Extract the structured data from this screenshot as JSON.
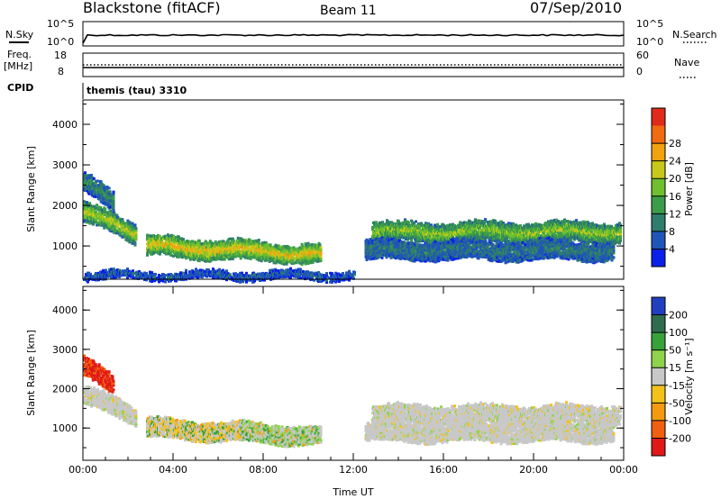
{
  "header": {
    "station": "Blackstone (fitACF)",
    "beam": "Beam 11",
    "date": "07/Sep/2010"
  },
  "top_panels": {
    "nsky_label": "N.Sky",
    "nsky_ticks": [
      "10^5",
      "10^0"
    ],
    "nsearch_label": "N.Search",
    "nsearch_ticks": [
      "10^5",
      "10^0"
    ],
    "freq_label": "Freq.",
    "freq_unit": "[MHz]",
    "freq_ticks": [
      "18",
      "8"
    ],
    "nave_label": "Nave",
    "nave_ticks": [
      "60",
      "0"
    ],
    "cpid_label": "CPID",
    "cpid_value": "themis (tau) 3310"
  },
  "chart_data": [
    {
      "type": "heatmap",
      "panel": "power",
      "ylabel": "Slant Range [km]",
      "yticks": [
        "1000",
        "2000",
        "3000",
        "4000"
      ],
      "ylim": [
        180,
        4600
      ],
      "xlim": [
        0,
        24
      ],
      "colorbar_label": "Power [dB]",
      "colorbar_ticks": [
        "4",
        "8",
        "12",
        "16",
        "20",
        "24",
        "28"
      ],
      "colors": [
        "#0a1fe8",
        "#1f55b8",
        "#2f7d6c",
        "#3b9d4a",
        "#6fbf2e",
        "#c7c91a",
        "#f2a20f",
        "#f06a12",
        "#e02a1a"
      ],
      "bands": [
        {
          "t0": 0.0,
          "t1": 2.3,
          "r0": 1850,
          "r1": 1300,
          "value_center": 18,
          "value_edge": 8
        },
        {
          "t0": 0.0,
          "t1": 1.3,
          "r0": 2550,
          "r1": 2100,
          "value_center": 10,
          "value_edge": 5
        },
        {
          "t0": 2.8,
          "t1": 10.5,
          "r0": 1000,
          "r1": 800,
          "value_center": 20,
          "value_edge": 10
        },
        {
          "t0": 12.8,
          "t1": 23.8,
          "r0": 1350,
          "r1": 1350,
          "value_center": 16,
          "value_edge": 8
        },
        {
          "t0": 12.5,
          "t1": 23.5,
          "r0": 900,
          "r1": 900,
          "value_center": 8,
          "value_edge": 5
        },
        {
          "t0": 0.0,
          "t1": 12.0,
          "r0": 280,
          "r1": 280,
          "value_center": 6,
          "value_edge": 4
        }
      ]
    },
    {
      "type": "heatmap",
      "panel": "velocity",
      "ylabel": "Slant Range [km]",
      "yticks": [
        "1000",
        "2000",
        "3000",
        "4000"
      ],
      "ylim": [
        180,
        4600
      ],
      "xlim": [
        0,
        24
      ],
      "colorbar_label": "Velocity [m s⁻¹]",
      "colorbar_ticks": [
        "200",
        "100",
        "50",
        "15",
        "-15",
        "-50",
        "-100",
        "-200"
      ],
      "colors": [
        "#1f3fbf",
        "#2f6d4f",
        "#35a23a",
        "#8fd34a",
        "#c8c8c8",
        "#f3c21a",
        "#f39a10",
        "#f06010",
        "#e01818"
      ],
      "xticks": [
        "00:00",
        "04:00",
        "08:00",
        "12:00",
        "16:00",
        "20:00",
        "00:00"
      ],
      "xlabel": "Time UT",
      "bands": [
        {
          "t0": 0.0,
          "t1": 2.3,
          "r0": 1850,
          "r1": 1300,
          "value_class": "gray"
        },
        {
          "t0": 0.0,
          "t1": 1.3,
          "r0": 2550,
          "r1": 2100,
          "value_class": "red"
        },
        {
          "t0": 2.8,
          "t1": 10.5,
          "r0": 1000,
          "r1": 800,
          "value_class": "mixed"
        },
        {
          "t0": 12.8,
          "t1": 23.8,
          "r0": 1350,
          "r1": 1350,
          "value_class": "gray"
        },
        {
          "t0": 12.5,
          "t1": 23.5,
          "r0": 900,
          "r1": 900,
          "value_class": "gray"
        }
      ]
    }
  ]
}
